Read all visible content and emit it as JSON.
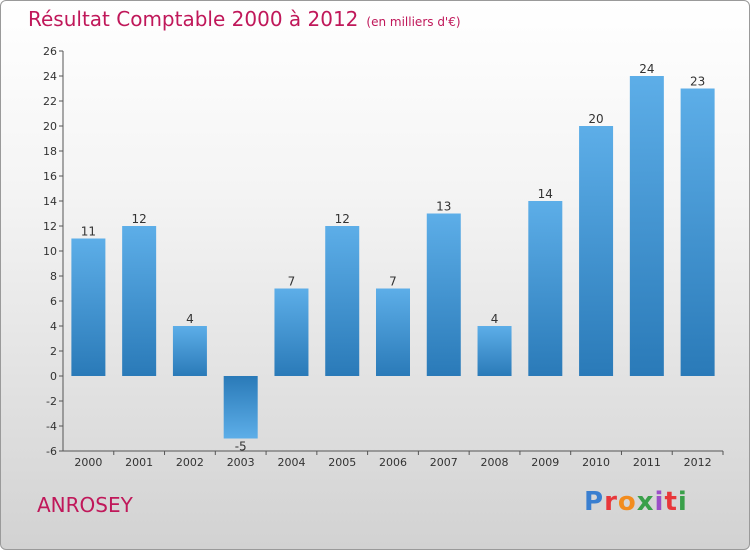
{
  "header": {
    "title": "Résultat Comptable 2000 à 2012",
    "subtitle": "(en milliers d'€)"
  },
  "footer": {
    "place": "ANROSEY",
    "logo": {
      "text": "Proxiti",
      "colors": [
        "#3a7fd0",
        "#e8373a",
        "#f28c1e",
        "#3aa04a",
        "#9b4fc8",
        "#e8373a",
        "#3aa04a"
      ]
    }
  },
  "colors": {
    "bar_light": "#5daee8",
    "bar_dark": "#2a7ab8",
    "title": "#c0185a"
  },
  "chart_data": {
    "type": "bar",
    "title": "Résultat Comptable 2000 à 2012",
    "subtitle": "(en milliers d'€)",
    "categories": [
      "2000",
      "2001",
      "2002",
      "2003",
      "2004",
      "2005",
      "2006",
      "2007",
      "2008",
      "2009",
      "2010",
      "2011",
      "2012"
    ],
    "values": [
      11,
      12,
      4,
      -5,
      7,
      12,
      7,
      13,
      4,
      14,
      20,
      24,
      23
    ],
    "ylim": [
      -6,
      26
    ],
    "yticks": [
      -6,
      -4,
      -2,
      0,
      2,
      4,
      6,
      8,
      10,
      12,
      14,
      16,
      18,
      20,
      22,
      24,
      26
    ],
    "grid": false
  }
}
